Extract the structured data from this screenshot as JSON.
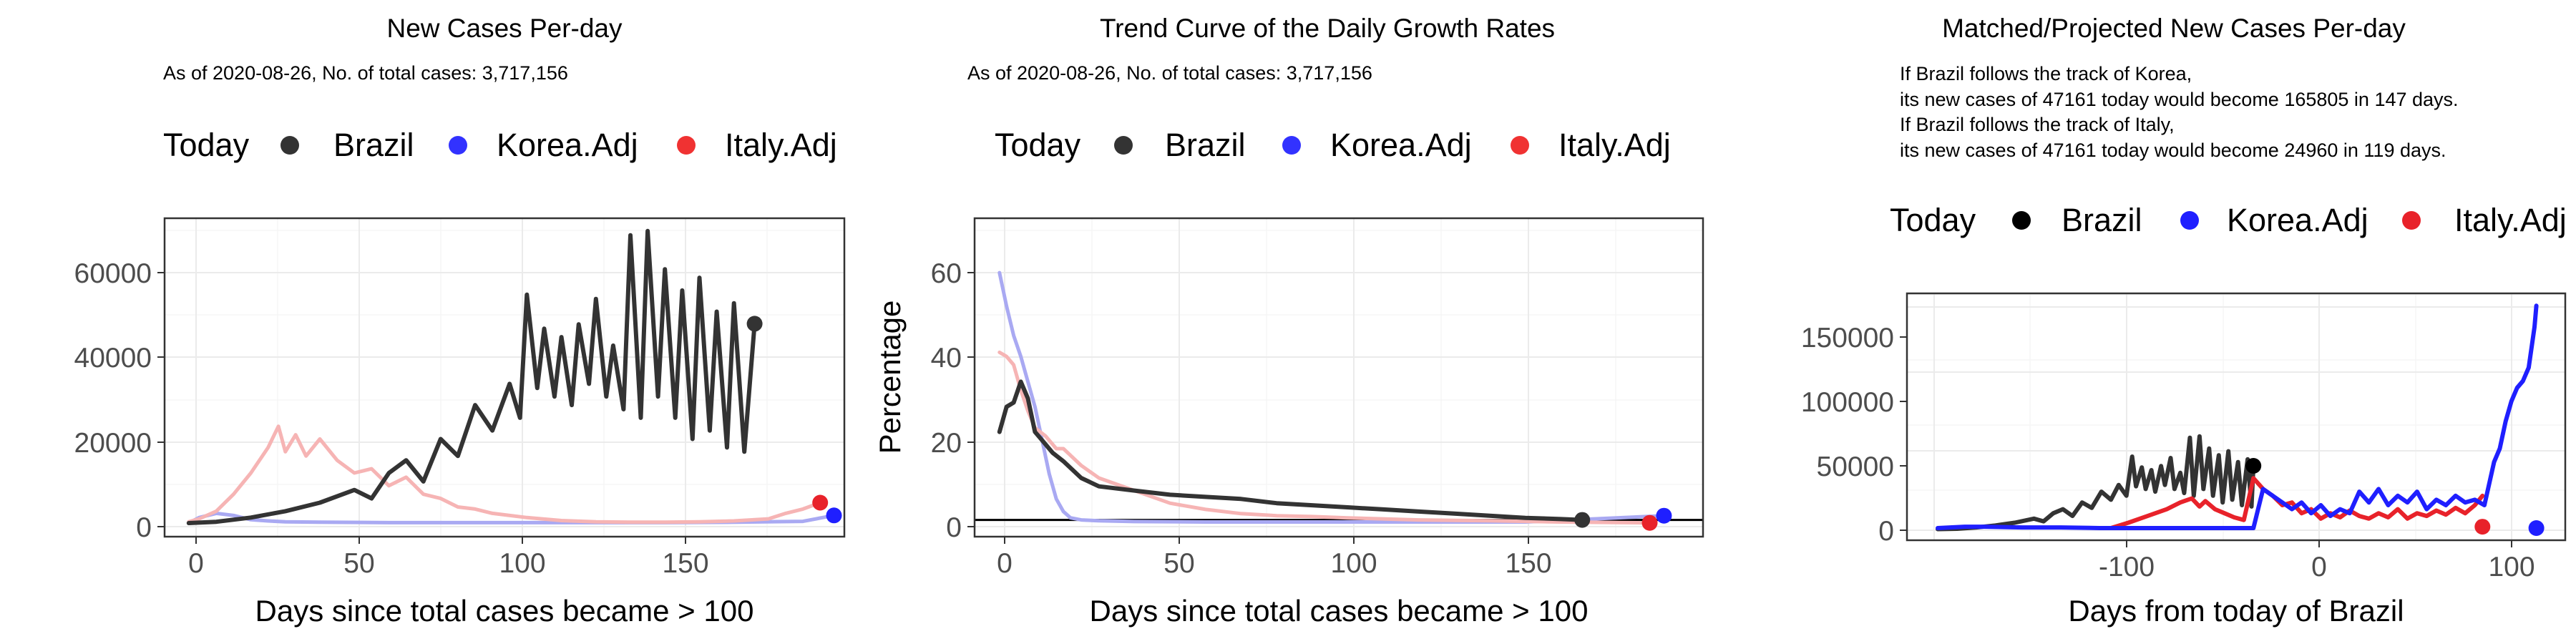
{
  "colors": {
    "brazil": "#333333",
    "brazil_dot": "#000000",
    "korea": "#1f1fff",
    "korea_faded": "#a9a9f2",
    "italy": "#e8222a",
    "italy_faded": "#f6b4b4"
  },
  "panels": [
    {
      "title": "New Cases Per-day",
      "subtitle": "As of 2020-08-26, No. of total cases: 3,717,156",
      "legend": [
        "Today",
        "Brazil",
        "Korea.Adj",
        "Italy.Adj"
      ],
      "xlabel": "Days since total cases became > 100",
      "ylabel": "",
      "x_ticks": [
        "0",
        "50",
        "100",
        "150"
      ],
      "y_ticks": [
        "0",
        "20000",
        "40000",
        "60000"
      ]
    },
    {
      "title": "Trend Curve of the Daily Growth Rates",
      "subtitle": "As of 2020-08-26, No. of total cases: 3,717,156",
      "legend": [
        "Today",
        "Brazil",
        "Korea.Adj",
        "Italy.Adj"
      ],
      "xlabel": "Days since total cases became > 100",
      "ylabel": "Percentage",
      "x_ticks": [
        "0",
        "50",
        "100",
        "150"
      ],
      "y_ticks": [
        "0",
        "20",
        "40",
        "60"
      ]
    },
    {
      "title": "Matched/Projected New Cases Per-day",
      "note_lines": [
        "If Brazil follows the track of Korea,",
        "its new cases of 47161 today would become 165805 in 147 days.",
        "If Brazil follows the track of Italy,",
        "its new cases of 47161 today would become 24960 in 119 days."
      ],
      "legend": [
        "Today",
        "Brazil",
        "Korea.Adj",
        "Italy.Adj"
      ],
      "xlabel": "Days from today of Brazil",
      "ylabel": "",
      "x_ticks": [
        "-100",
        "0",
        "100"
      ],
      "y_ticks": [
        "0",
        "50000",
        "100000",
        "150000"
      ]
    }
  ],
  "chart_data": [
    {
      "type": "line",
      "title": "New Cases Per-day",
      "xlabel": "Days since total cases became > 100",
      "ylabel": "",
      "xlim": [
        -5,
        192
      ],
      "ylim": [
        -3000,
        72000
      ],
      "series": [
        {
          "name": "Brazil",
          "x": [
            2,
            10,
            20,
            30,
            40,
            50,
            55,
            60,
            65,
            70,
            75,
            80,
            85,
            90,
            95,
            98,
            100,
            103,
            105,
            108,
            110,
            113,
            115,
            118,
            120,
            123,
            125,
            128,
            130,
            133,
            135,
            138,
            140,
            143,
            145,
            148,
            150,
            153,
            155,
            158,
            160,
            163,
            166
          ],
          "values": [
            200,
            500,
            1500,
            3000,
            5000,
            8000,
            6000,
            12000,
            15000,
            10000,
            20000,
            16000,
            28000,
            22000,
            33000,
            25000,
            54000,
            32000,
            46000,
            30000,
            44000,
            28000,
            47000,
            33000,
            53000,
            30000,
            42000,
            27000,
            68000,
            25000,
            69000,
            30000,
            60000,
            25000,
            55000,
            20000,
            58000,
            22000,
            50000,
            18000,
            52000,
            17000,
            47161
          ]
        },
        {
          "name": "Korea.Adj",
          "x": [
            2,
            5,
            10,
            15,
            20,
            25,
            30,
            40,
            60,
            80,
            100,
            120,
            140,
            160,
            180,
            189
          ],
          "values": [
            200,
            1500,
            2500,
            2000,
            1000,
            700,
            500,
            400,
            300,
            300,
            300,
            300,
            300,
            400,
            600,
            2000
          ]
        },
        {
          "name": "Italy.Adj",
          "x": [
            2,
            5,
            10,
            15,
            20,
            25,
            28,
            30,
            33,
            36,
            40,
            45,
            50,
            55,
            60,
            65,
            70,
            75,
            80,
            85,
            90,
            100,
            110,
            120,
            130,
            140,
            150,
            160,
            170,
            175,
            180,
            185
          ],
          "values": [
            500,
            1200,
            3000,
            7000,
            12000,
            18000,
            23000,
            17000,
            21000,
            16000,
            20000,
            15000,
            12000,
            13000,
            9000,
            11000,
            7000,
            6000,
            4000,
            3500,
            2500,
            1500,
            800,
            500,
            400,
            400,
            500,
            700,
            1200,
            2500,
            3500,
            5000
          ]
        }
      ],
      "today_points": [
        {
          "name": "Brazil",
          "x": 166,
          "y": 47161
        },
        {
          "name": "Korea.Adj",
          "x": 189,
          "y": 2000
        },
        {
          "name": "Italy.Adj",
          "x": 185,
          "y": 5000
        }
      ]
    },
    {
      "type": "line",
      "title": "Trend Curve of the Daily Growth Rates",
      "xlabel": "Days since total cases became > 100",
      "ylabel": "Percentage",
      "xlim": [
        -5,
        200
      ],
      "ylim": [
        -3,
        73
      ],
      "hline": 1,
      "series": [
        {
          "name": "Brazil",
          "x": [
            2,
            4,
            6,
            8,
            10,
            12,
            14,
            17,
            20,
            25,
            30,
            40,
            50,
            60,
            70,
            80,
            90,
            100,
            110,
            120,
            130,
            140,
            150,
            160,
            166
          ],
          "values": [
            22,
            28,
            29,
            34,
            30,
            22,
            20,
            17,
            15,
            11,
            9,
            8,
            7,
            6.5,
            6,
            5,
            4.5,
            4,
            3.5,
            3,
            2.5,
            2,
            1.5,
            1.2,
            1
          ]
        },
        {
          "name": "Korea.Adj",
          "x": [
            2,
            4,
            6,
            8,
            10,
            12,
            14,
            16,
            18,
            20,
            22,
            25,
            30,
            40,
            60,
            80,
            100,
            150,
            189
          ],
          "values": [
            60,
            52,
            45,
            40,
            34,
            28,
            20,
            12,
            6,
            3,
            1.5,
            1,
            0.8,
            0.6,
            0.5,
            0.5,
            0.5,
            0.5,
            2
          ]
        },
        {
          "name": "Italy.Adj",
          "x": [
            2,
            4,
            6,
            8,
            10,
            12,
            15,
            18,
            20,
            25,
            30,
            40,
            50,
            60,
            70,
            80,
            90,
            100,
            120,
            140,
            160,
            185
          ],
          "values": [
            41,
            40,
            38,
            32,
            27,
            23,
            21,
            18,
            18,
            14,
            11,
            8,
            5,
            3.5,
            2.5,
            2,
            1.8,
            1.5,
            1,
            0.8,
            0.5,
            0.3
          ]
        }
      ],
      "today_points": [
        {
          "name": "Brazil",
          "x": 166,
          "y": 1
        },
        {
          "name": "Korea.Adj",
          "x": 189,
          "y": 2
        },
        {
          "name": "Italy.Adj",
          "x": 185,
          "y": 0.3
        }
      ]
    },
    {
      "type": "line",
      "title": "Matched/Projected New Cases Per-day",
      "xlabel": "Days from today of Brazil",
      "ylabel": "",
      "xlim": [
        -180,
        162
      ],
      "ylim": [
        -8000,
        175000
      ],
      "series": [
        {
          "name": "Brazil",
          "x": [
            -164,
            -154,
            -144,
            -134,
            -124,
            -114,
            -109,
            -104,
            -99,
            -94,
            -89,
            -84,
            -79,
            -74,
            -70,
            -66,
            -63,
            -61,
            -58,
            -56,
            -53,
            -51,
            -48,
            -46,
            -43,
            -41,
            -38,
            -36,
            -33,
            -31,
            -28,
            -26,
            -23,
            -21,
            -18,
            -16,
            -13,
            -11,
            -8,
            -6,
            -3,
            -1,
            0
          ],
          "values": [
            200,
            500,
            1500,
            3000,
            5000,
            8000,
            6000,
            12000,
            15000,
            10000,
            20000,
            16000,
            28000,
            22000,
            33000,
            25000,
            54000,
            32000,
            46000,
            30000,
            44000,
            28000,
            47000,
            33000,
            53000,
            30000,
            42000,
            27000,
            68000,
            25000,
            69000,
            30000,
            60000,
            25000,
            55000,
            20000,
            58000,
            22000,
            50000,
            18000,
            52000,
            17000,
            47161
          ]
        },
        {
          "name": "Korea.Adj",
          "x": [
            -164,
            -150,
            -140,
            -120,
            -100,
            -80,
            -60,
            -40,
            -20,
            0,
            5,
            10,
            15,
            20,
            25,
            30,
            35,
            40,
            45,
            50,
            55,
            60,
            65,
            70,
            75,
            80,
            85,
            90,
            95,
            100,
            105,
            110,
            115,
            120,
            125,
            128,
            131,
            134,
            137,
            140,
            143,
            146,
            147
          ],
          "values": [
            1000,
            2000,
            2000,
            1500,
            1500,
            1000,
            1000,
            1000,
            1000,
            1000,
            30000,
            25000,
            20000,
            15000,
            20000,
            12000,
            18000,
            10000,
            15000,
            12000,
            28000,
            20000,
            30000,
            18000,
            25000,
            20000,
            28000,
            15000,
            22000,
            18000,
            25000,
            20000,
            22000,
            18000,
            50000,
            60000,
            80000,
            95000,
            105000,
            110000,
            120000,
            150000,
            165805
          ]
        },
        {
          "name": "Italy.Adj",
          "x": [
            -74,
            -65,
            -55,
            -45,
            -38,
            -32,
            -28,
            -25,
            -20,
            -15,
            -10,
            -5,
            0,
            5,
            10,
            15,
            20,
            25,
            30,
            35,
            40,
            45,
            50,
            55,
            60,
            65,
            70,
            75,
            80,
            85,
            90,
            95,
            100,
            105,
            110,
            115,
            119
          ],
          "values": [
            1000,
            5000,
            10000,
            15000,
            20000,
            23000,
            17000,
            21000,
            15000,
            12000,
            9000,
            7000,
            38000,
            30000,
            25000,
            18000,
            20000,
            12000,
            15000,
            8000,
            12000,
            9000,
            14000,
            10000,
            8000,
            12000,
            9000,
            15000,
            8000,
            12000,
            10000,
            14000,
            11000,
            16000,
            12000,
            18000,
            24960
          ]
        }
      ],
      "today_points": [
        {
          "name": "Brazil",
          "x": 0,
          "y": 47161
        },
        {
          "name": "Korea.Adj",
          "x": 147,
          "y": 1000
        },
        {
          "name": "Italy.Adj",
          "x": 119,
          "y": 2000
        }
      ]
    }
  ]
}
